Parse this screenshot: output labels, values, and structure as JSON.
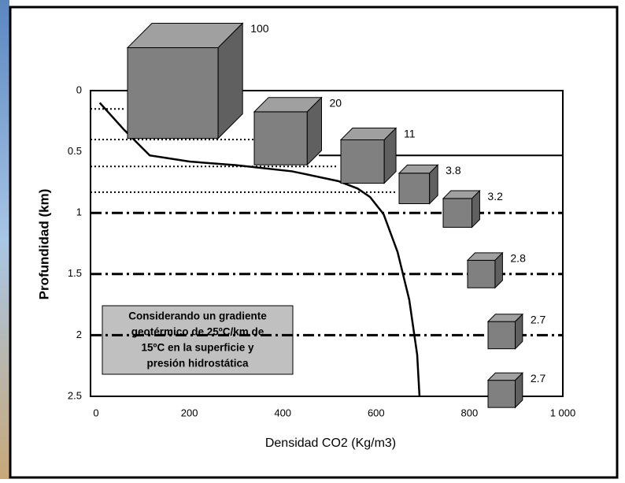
{
  "chart_data": {
    "type": "line",
    "x_label": "Densidad CO2 (Kg/m3)",
    "y_label": "Profundidad (km)",
    "xlim": [
      0,
      1000
    ],
    "xticks": [
      0,
      200,
      400,
      600,
      800,
      {
        "value": 1000,
        "label": "1 000"
      }
    ],
    "ylim": [
      0,
      2.5
    ],
    "yticks": [
      0,
      0.5,
      1,
      1.5,
      2,
      2.5
    ],
    "y_inverted": true,
    "series": [
      {
        "color": "#000000",
        "x": [
          8,
          60,
          115,
          200,
          300,
          420,
          519,
          560,
          587,
          616,
          646,
          671,
          688,
          693
        ],
        "values": [
          0.1,
          0.32,
          0.53,
          0.58,
          0.61,
          0.66,
          0.74,
          0.8,
          0.87,
          1.01,
          1.32,
          1.71,
          2.16,
          2.5
        ]
      }
    ],
    "reference_lines": [
      {
        "depth": 0.15,
        "style": "dotted"
      },
      {
        "depth": 0.4,
        "style": "dotted"
      },
      {
        "depth": 0.53,
        "style": "solid"
      },
      {
        "depth": 0.62,
        "style": "dotted"
      },
      {
        "depth": 0.83,
        "style": "dotted"
      },
      {
        "depth": 1,
        "style": "dashdot"
      },
      {
        "depth": 1.5,
        "style": "dashdot"
      },
      {
        "depth": 2,
        "style": "dashdot"
      }
    ],
    "cubes": {
      "volumes": [
        100,
        20,
        11,
        3.8,
        3.2,
        2.8,
        2.7,
        2.7
      ],
      "depths": [
        0.02,
        0.39,
        0.58,
        0.8,
        1,
        1.5,
        2,
        2.48
      ],
      "color": "#808080"
    },
    "annotation": [
      "Considerando un gradiente",
      "geotérmico de 25ºC/km de",
      "15ºC en la superficie y",
      "presión hidrostática"
    ]
  }
}
